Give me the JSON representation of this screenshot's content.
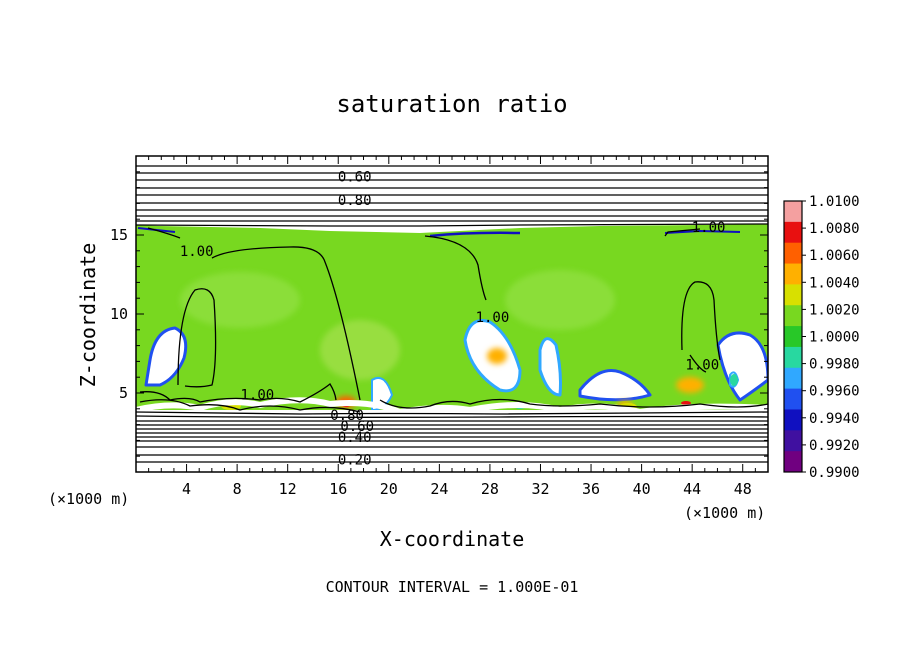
{
  "chart_data": {
    "type": "heatmap",
    "title": "saturation ratio",
    "xlabel": "X-coordinate",
    "ylabel": "Z-coordinate",
    "x_units_left": "(×1000 m)",
    "x_units_right": "(×1000 m)",
    "xlim": [
      0,
      50
    ],
    "ylim": [
      0,
      20
    ],
    "x_ticks": [
      4,
      8,
      12,
      16,
      20,
      24,
      28,
      32,
      36,
      40,
      44,
      48
    ],
    "y_ticks": [
      5,
      10,
      15
    ],
    "footer": "CONTOUR INTERVAL = 1.000E-01",
    "colorbar": {
      "labels": [
        "1.0100",
        "1.0080",
        "1.0060",
        "1.0040",
        "1.0020",
        "1.0000",
        "0.9980",
        "0.9960",
        "0.9940",
        "0.9920",
        "0.9900"
      ],
      "colors": [
        "#f4a0a0",
        "#e81010",
        "#ff6000",
        "#ffb000",
        "#d8e000",
        "#78d820",
        "#28c828",
        "#28d8a0",
        "#30a8ff",
        "#2050f0",
        "#1010c0",
        "#4010a0",
        "#700080"
      ]
    },
    "contour_labels": [
      {
        "text": "0.60",
        "x": 17.3,
        "z": 18.7
      },
      {
        "text": "0.80",
        "x": 17.3,
        "z": 17.2
      },
      {
        "text": "1.00",
        "x": 45.3,
        "z": 15.5
      },
      {
        "text": "1.00",
        "x": 4.8,
        "z": 14.0
      },
      {
        "text": "1.00",
        "x": 28.2,
        "z": 9.8
      },
      {
        "text": "1.00",
        "x": 44.8,
        "z": 6.8
      },
      {
        "text": "1.00",
        "x": 9.6,
        "z": 4.9
      },
      {
        "text": "0.80",
        "x": 16.7,
        "z": 3.6
      },
      {
        "text": "0.60",
        "x": 17.5,
        "z": 2.9
      },
      {
        "text": "0.40",
        "x": 17.3,
        "z": 2.2
      },
      {
        "text": "0.20",
        "x": 17.3,
        "z": 0.8
      }
    ]
  }
}
